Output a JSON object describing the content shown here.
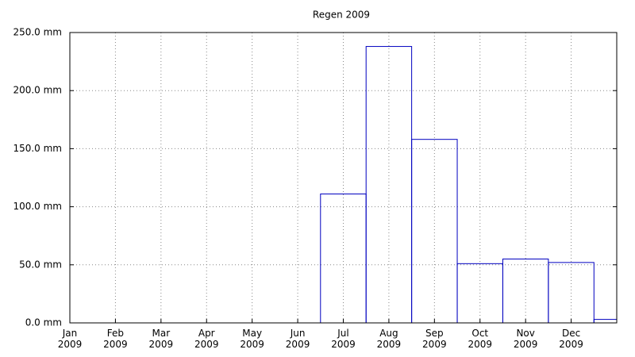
{
  "chart_data": {
    "type": "bar",
    "title": "Regen 2009",
    "categories": [
      "Jan 2009",
      "Feb 2009",
      "Mar 2009",
      "Apr 2009",
      "May 2009",
      "Jun 2009",
      "Jul 2009",
      "Aug 2009",
      "Sep 2009",
      "Oct 2009",
      "Nov 2009",
      "Dec 2009",
      null
    ],
    "values": [
      0,
      0,
      0,
      0,
      0,
      0,
      111,
      238,
      158,
      51,
      55,
      52,
      3
    ],
    "color": "#0000c0",
    "ylim": [
      0,
      250
    ],
    "yticks": [
      {
        "value": 0,
        "label": "0.0 mm"
      },
      {
        "value": 50,
        "label": "50.0 mm"
      },
      {
        "value": 100,
        "label": "100.0 mm"
      },
      {
        "value": 150,
        "label": "150.0 mm"
      },
      {
        "value": 200,
        "label": "200.0 mm"
      },
      {
        "value": 250,
        "label": "250.0 mm"
      }
    ],
    "grid": true
  }
}
